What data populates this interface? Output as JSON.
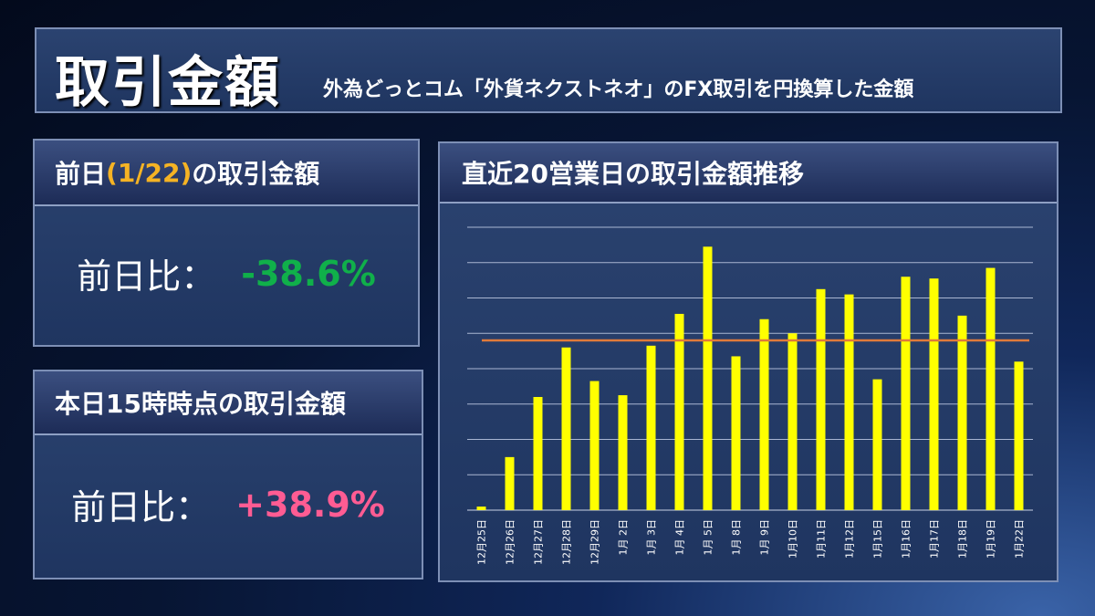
{
  "header": {
    "title": "取引金額",
    "subtitle": "外為どっとコム「外貨ネクストネオ」のFX取引を円換算した金額"
  },
  "prev_day_card": {
    "title_prefix": "前日",
    "title_date": "(1/22)",
    "title_suffix": "の取引金額",
    "label": "前日比：",
    "value": "-38.6%"
  },
  "today_card": {
    "title": "本日15時時点の取引金額",
    "label": "前日比：",
    "value": "+38.9%"
  },
  "chart_data": {
    "type": "bar",
    "title": "直近20営業日の取引金額推移",
    "categories": [
      "12月25日",
      "12月26日",
      "12月27日",
      "12月28日",
      "12月29日",
      "1月 2日",
      "1月 3日",
      "1月 4日",
      "1月 5日",
      "1月 8日",
      "1月 9日",
      "1月10日",
      "1月11日",
      "1月12日",
      "1月15日",
      "1月16日",
      "1月17日",
      "1月18日",
      "1月19日",
      "1月22日"
    ],
    "values": [
      0.1,
      1.5,
      3.2,
      4.6,
      3.65,
      3.25,
      4.65,
      5.55,
      7.45,
      4.35,
      5.4,
      5.0,
      6.25,
      6.1,
      3.7,
      6.6,
      6.55,
      5.5,
      6.85,
      4.2
    ],
    "average": 4.8,
    "ylim": [
      0,
      8
    ],
    "grid": true,
    "bar_color": "#ffff00",
    "average_line_color": "#e07a3a"
  }
}
